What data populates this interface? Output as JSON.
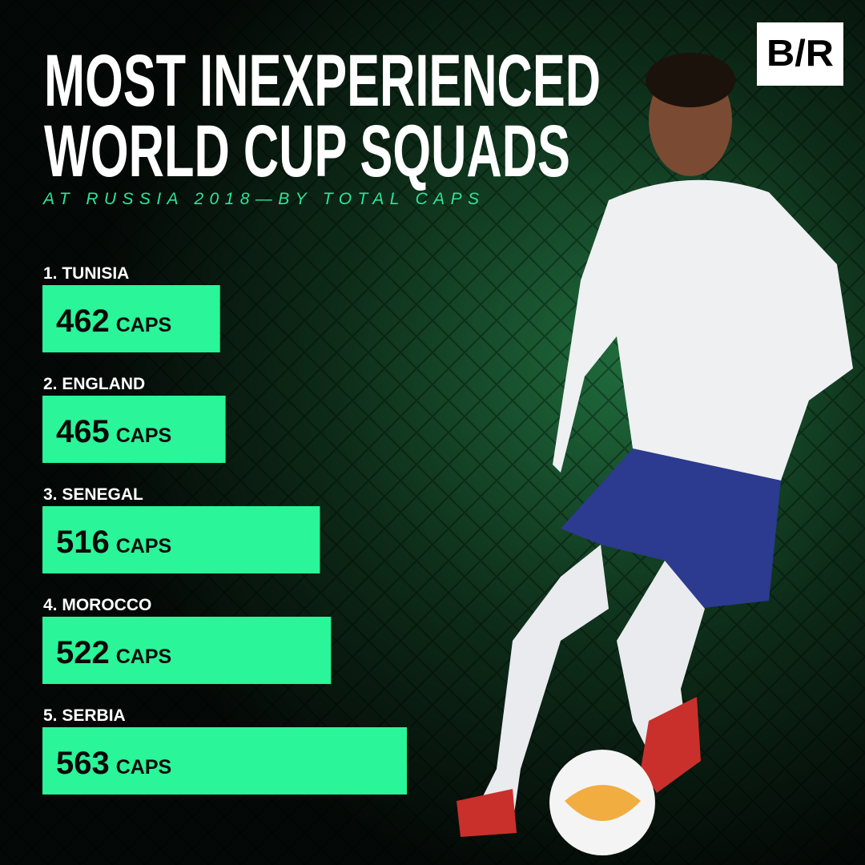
{
  "logo": "B/R",
  "chart_data": {
    "type": "bar",
    "orientation": "horizontal",
    "title": [
      "MOST INEXPERIENCED",
      "WORLD CUP SQUADS"
    ],
    "subtitle": "AT RUSSIA 2018—BY TOTAL CAPS",
    "categories": [
      "1. TUNISIA",
      "2. ENGLAND",
      "3. SENEGAL",
      "4. MOROCCO",
      "5. SERBIA"
    ],
    "values": [
      462,
      465,
      516,
      522,
      563
    ],
    "unit": "CAPS",
    "color": "#2af598",
    "xlim": [
      366,
      563
    ]
  }
}
